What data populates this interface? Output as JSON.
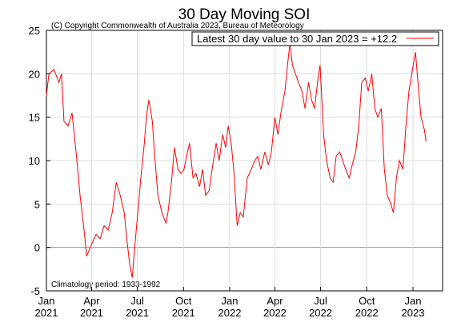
{
  "chart_data": {
    "type": "line",
    "title": "30 Day Moving SOI",
    "subtitle": "(C) Copyright Commonwealth of Australia 2023, Bureau of Meteorology",
    "annotation": "Climatology period: 1933-1992",
    "x": [
      0,
      5,
      15,
      25,
      30,
      35,
      43,
      51,
      59,
      67,
      75,
      80,
      91,
      99,
      107,
      115,
      123,
      131,
      139,
      147,
      155,
      160,
      166,
      171,
      175,
      182,
      188,
      195,
      199,
      204,
      211,
      215,
      222,
      230,
      238,
      242,
      249,
      255,
      262,
      268,
      274,
      279,
      285,
      292,
      298,
      305,
      311,
      317,
      324,
      330,
      338,
      344,
      351,
      357,
      362,
      368,
      373,
      380,
      386,
      392,
      400,
      408,
      415,
      421,
      427,
      435,
      442,
      448,
      455,
      461,
      467,
      475,
      482,
      485,
      490,
      496,
      502,
      509,
      515,
      522,
      528,
      534,
      541,
      545,
      552,
      558,
      565,
      571,
      577,
      584,
      590,
      596,
      603,
      609,
      616,
      622,
      628,
      635,
      641,
      648,
      654,
      660,
      667,
      673,
      679,
      686,
      691,
      697,
      703,
      710,
      716,
      722,
      729,
      735,
      740,
      746,
      753,
      756
    ],
    "series": [
      {
        "name": "Latest 30 day value to 30 Jan 2023 = +12.2",
        "color": "#ff0000",
        "values": [
          17.5,
          20,
          20.5,
          19,
          20,
          14.5,
          14,
          15.5,
          11,
          6,
          2,
          -1,
          0.5,
          1.5,
          1,
          2.5,
          2,
          4,
          7.5,
          6,
          4,
          1,
          -2,
          -3.5,
          -0.5,
          4,
          8,
          12,
          15,
          17,
          14.5,
          11,
          6,
          4,
          2.8,
          4,
          7.5,
          11.5,
          9,
          8.5,
          9,
          10.5,
          12,
          8,
          8.5,
          7,
          9,
          6,
          6.5,
          9,
          12,
          10,
          13,
          11.5,
          14,
          12,
          9,
          2.5,
          4,
          3.5,
          8,
          9,
          10,
          10.5,
          9,
          11,
          9.5,
          11,
          15,
          13,
          15.5,
          18,
          22,
          23.5,
          21,
          20,
          19,
          18,
          16,
          19,
          17,
          16,
          19.5,
          21,
          13,
          10,
          8,
          7.5,
          10.5,
          11,
          10,
          9,
          8,
          9.5,
          11,
          14,
          19,
          19.5,
          18,
          20,
          16,
          15,
          16,
          9,
          6,
          5,
          4,
          8,
          10,
          9,
          14,
          18,
          20.5,
          22.5,
          19,
          15,
          13.5,
          12.2
        ]
      }
    ],
    "xlim": [
      0,
      789
    ],
    "xticks": [
      {
        "value": 0,
        "label": "Jan\n2021"
      },
      {
        "value": 90,
        "label": "Apr\n2021"
      },
      {
        "value": 181,
        "label": "Jul\n2021"
      },
      {
        "value": 273,
        "label": "Oct\n2021"
      },
      {
        "value": 365,
        "label": "Jan\n2022"
      },
      {
        "value": 455,
        "label": "Apr\n2022"
      },
      {
        "value": 546,
        "label": "Jul\n2022"
      },
      {
        "value": 638,
        "label": "Oct\n2022"
      },
      {
        "value": 730,
        "label": "Jan\n2023"
      }
    ],
    "ylim": [
      -5,
      25
    ],
    "yticks": [
      -5,
      0,
      5,
      10,
      15,
      20,
      25
    ],
    "grid": true
  }
}
